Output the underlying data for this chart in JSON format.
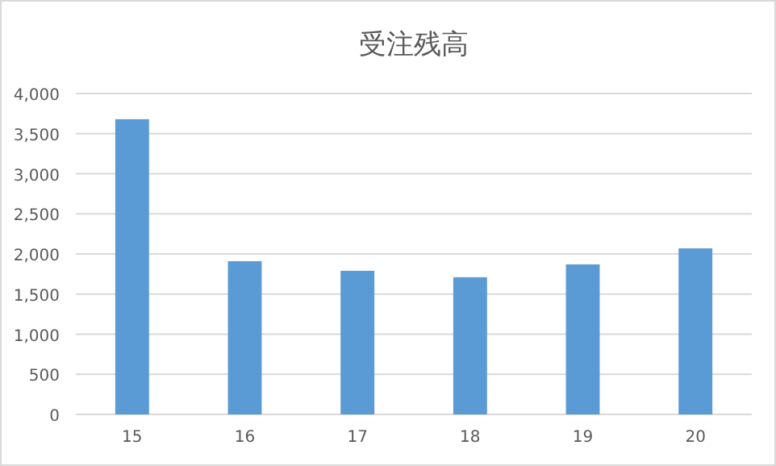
{
  "chart_data": {
    "type": "bar",
    "title": "受注残高",
    "categories": [
      "15",
      "16",
      "17",
      "18",
      "19",
      "20"
    ],
    "values": [
      3680,
      1910,
      1790,
      1710,
      1870,
      2070
    ],
    "color": "#5b9bd5",
    "ylim": [
      0,
      4000
    ],
    "yticks": [
      0,
      500,
      {
        "value": 1000,
        "label": "1,000"
      },
      {
        "value": 1500,
        "label": "1,500"
      },
      {
        "value": 2000,
        "label": "2,000"
      },
      {
        "value": 2500,
        "label": "2,500"
      },
      {
        "value": 3000,
        "label": "3,000"
      },
      {
        "value": 3500,
        "label": "3,500"
      },
      {
        "value": 4000,
        "label": "4,000"
      }
    ],
    "grid": "y"
  }
}
